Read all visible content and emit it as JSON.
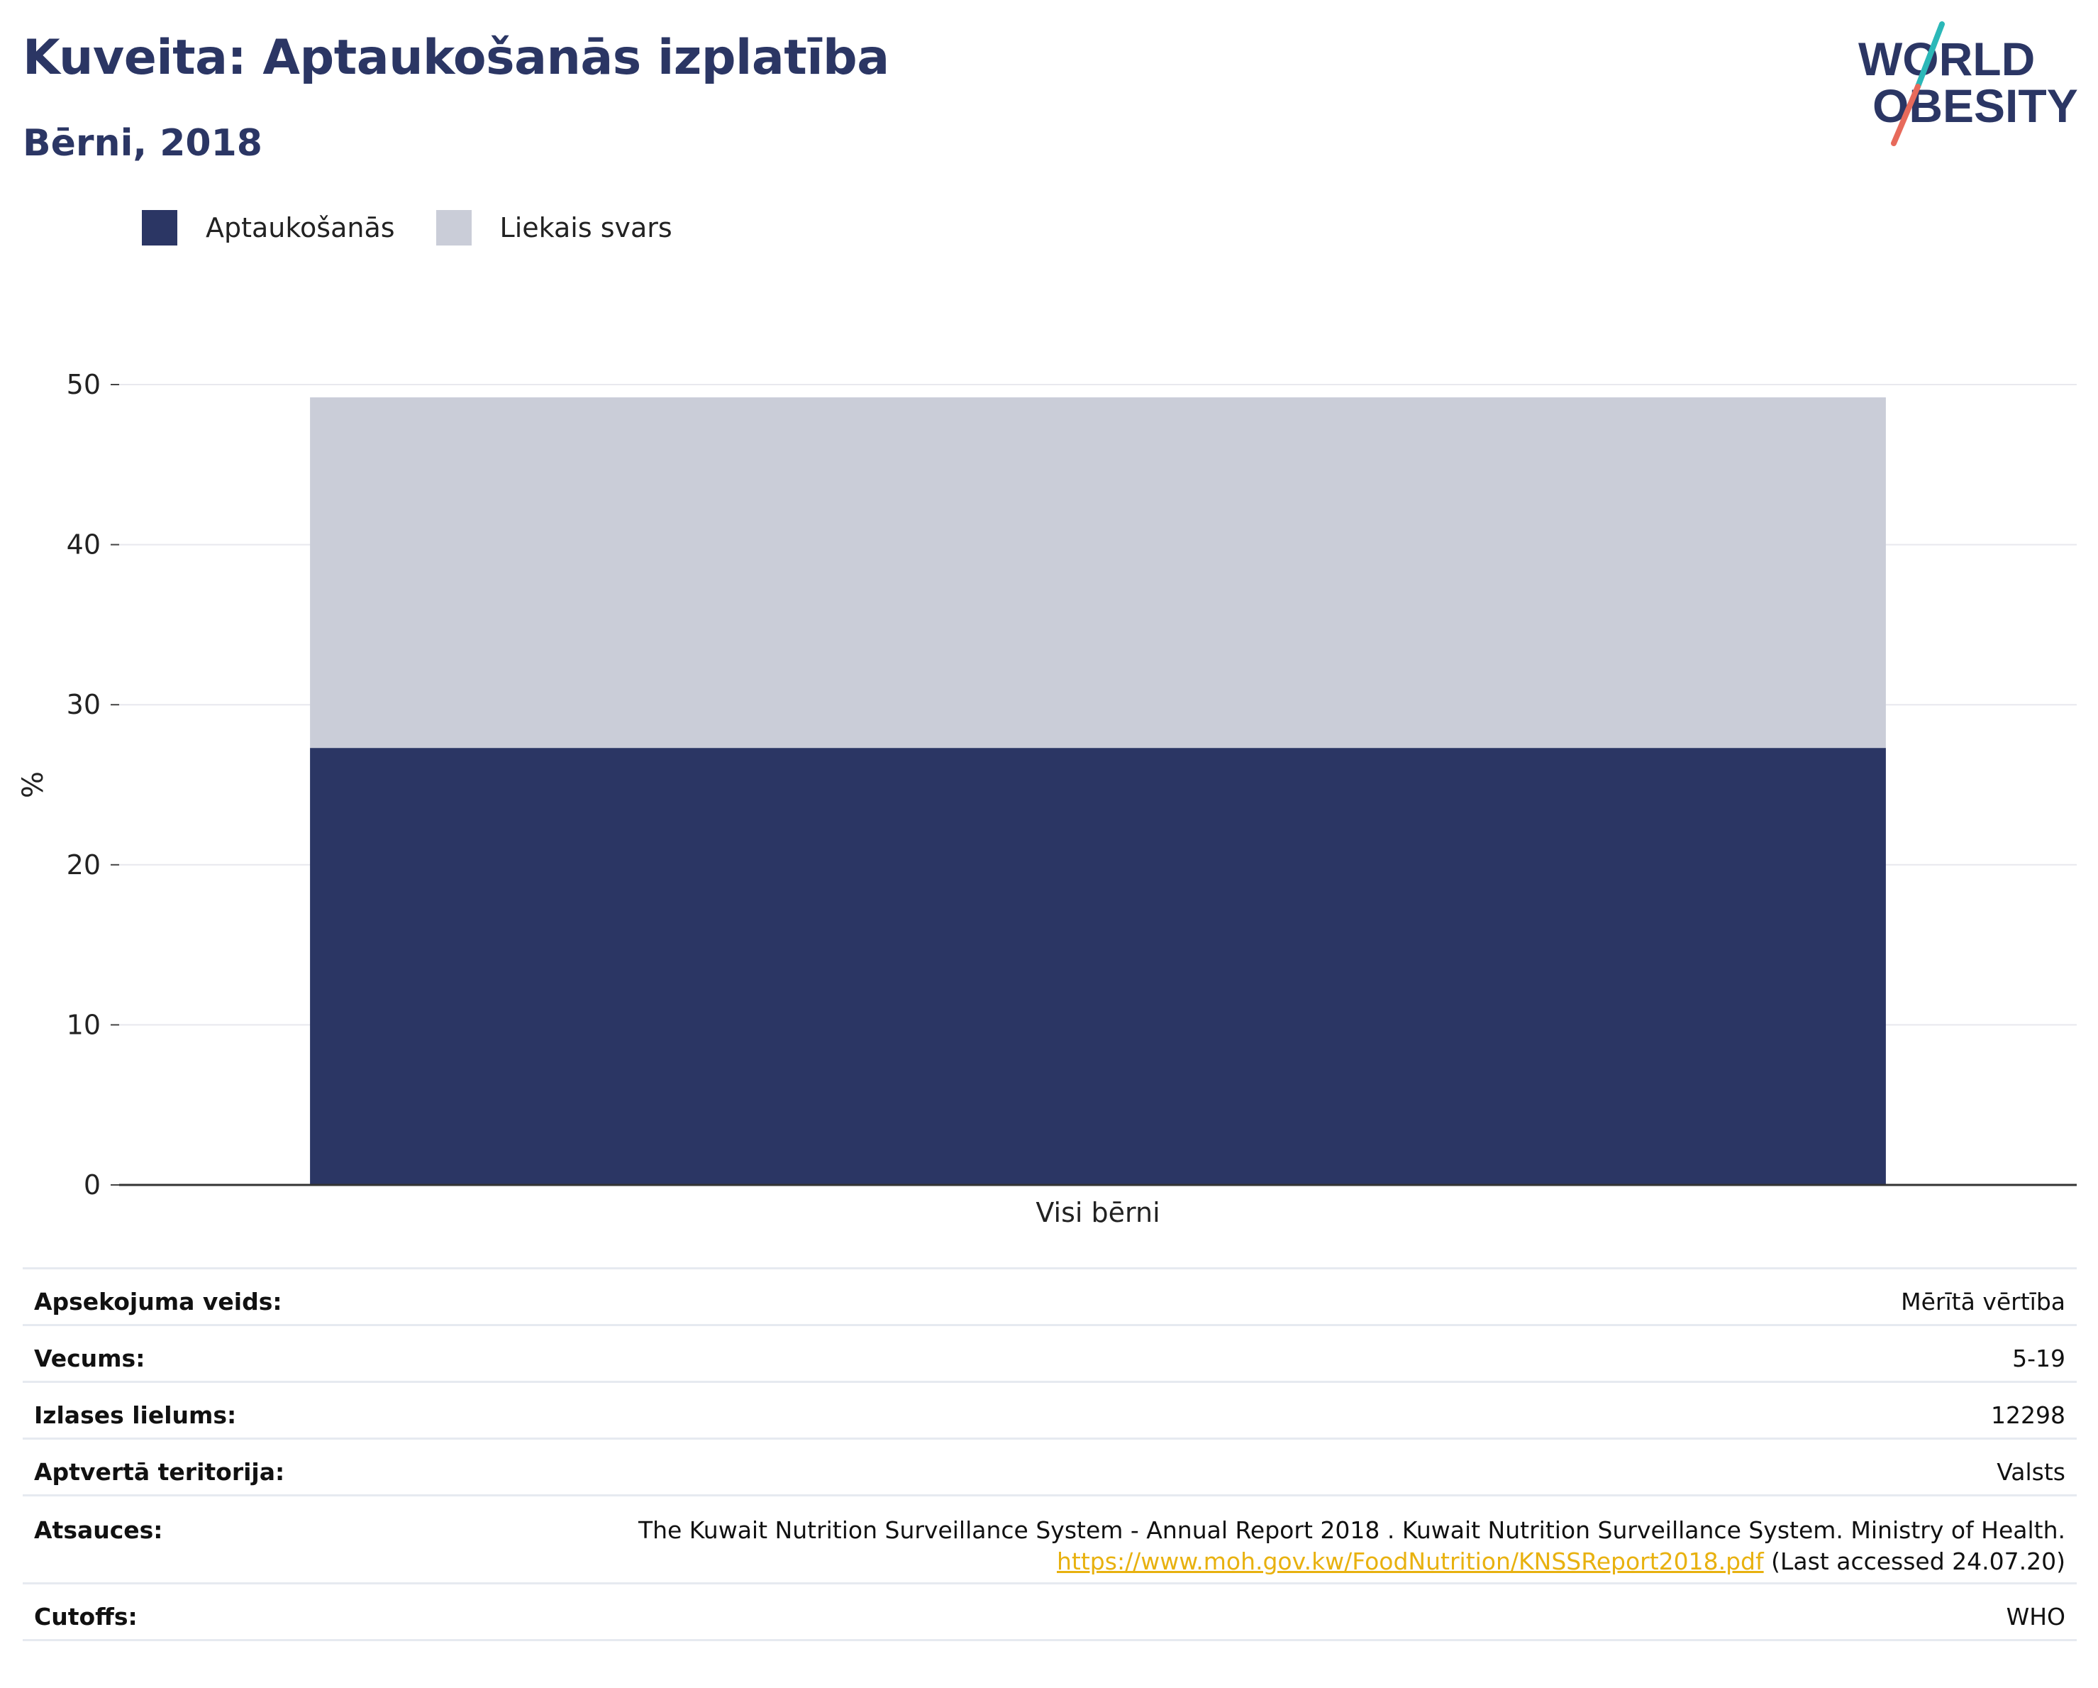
{
  "title": "Kuveita: Aptaukošanās izplatība",
  "subtitle": "Bērni, 2018",
  "logo": {
    "line1": "WORLD",
    "line2": "OBESITY"
  },
  "colors": {
    "obesity": "#2b3664",
    "overweight": "#cacdd8",
    "title": "#2b3664",
    "link": "#e8b10f",
    "logo_teal": "#2bb8b8",
    "logo_coral": "#e76a5b"
  },
  "legend": [
    {
      "label": "Aptaukošanās",
      "color": "#2b3664"
    },
    {
      "label": "Liekais svars",
      "color": "#cacdd8"
    }
  ],
  "chart_data": {
    "type": "bar",
    "stacked": true,
    "categories": [
      "Visi bērni"
    ],
    "series": [
      {
        "name": "Aptaukošanās",
        "values": [
          27.3
        ]
      },
      {
        "name": "Liekais svars",
        "values": [
          21.9
        ]
      }
    ],
    "ylabel": "%",
    "xlabel": "",
    "ylim": [
      0,
      50
    ],
    "yticks": [
      0,
      10,
      20,
      30,
      40,
      50
    ],
    "grid": true
  },
  "info": {
    "survey_type": {
      "label": "Apsekojuma veids:",
      "value": "Mērītā vērtība"
    },
    "age": {
      "label": "Vecums:",
      "value": "5-19"
    },
    "sample_size": {
      "label": "Izlases lielums:",
      "value": "12298"
    },
    "coverage": {
      "label": "Aptvertā teritorija:",
      "value": "Valsts"
    },
    "references": {
      "label": "Atsauces:",
      "text": "The Kuwait Nutrition Surveillance System - Annual Report 2018 . Kuwait Nutrition Surveillance System. Ministry of Health.",
      "link": "https://www.moh.gov.kw/FoodNutrition/KNSSReport2018.pdf",
      "accessed": "(Last accessed 24.07.20)"
    },
    "cutoffs": {
      "label": "Cutoffs:",
      "value": "WHO"
    }
  }
}
